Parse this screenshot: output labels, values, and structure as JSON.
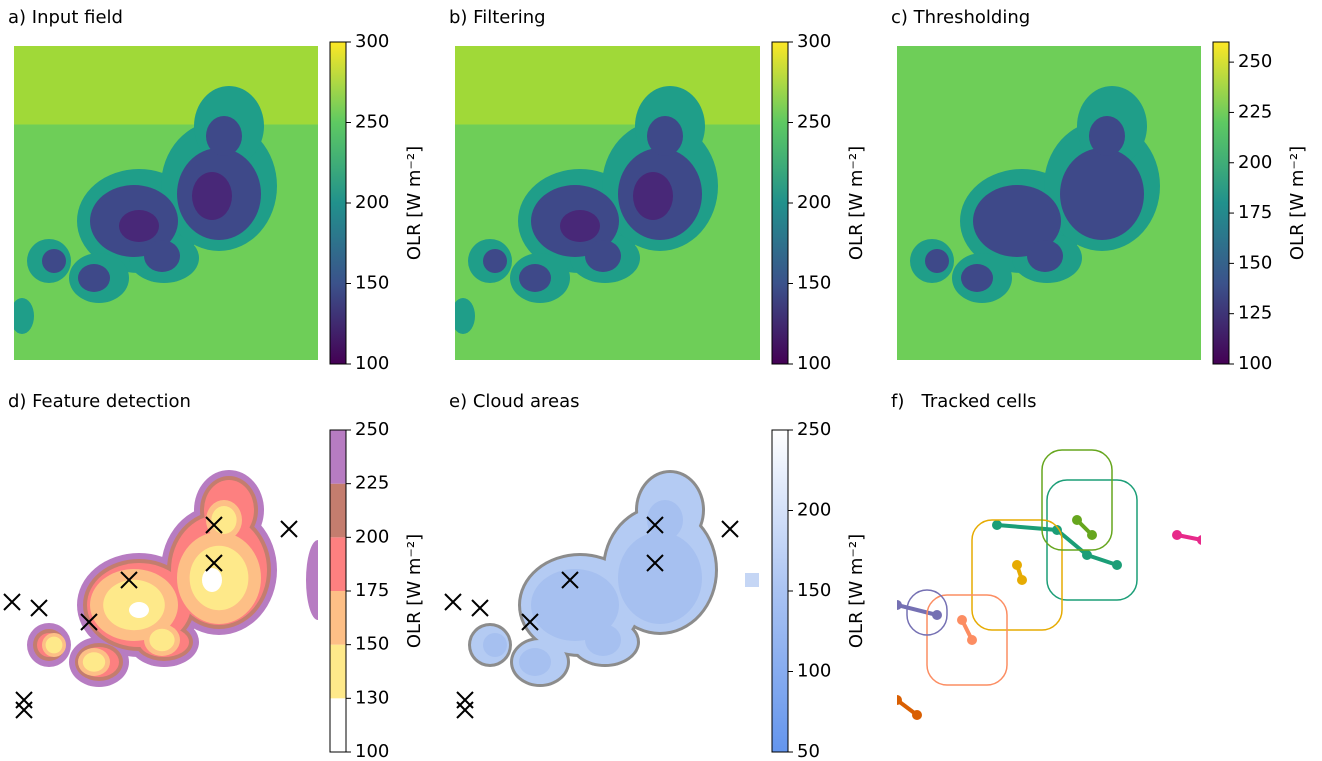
{
  "chart_data": [
    {
      "type": "heatmap",
      "title": "a) Input field",
      "colormap": "viridis",
      "colorbar_label": "OLR [W m⁻²]",
      "clim": [
        100,
        300
      ],
      "cticks": [
        100,
        150,
        200,
        250,
        300
      ]
    },
    {
      "type": "heatmap",
      "title": "b) Filtering",
      "colormap": "viridis",
      "colorbar_label": "OLR [W m⁻²]",
      "clim": [
        100,
        300
      ],
      "cticks": [
        100,
        150,
        200,
        250,
        300
      ]
    },
    {
      "type": "heatmap",
      "title": "c) Thresholding",
      "colormap": "viridis",
      "colorbar_label": "OLR [W m⁻²]",
      "clim": [
        100,
        260
      ],
      "cticks": [
        100,
        125,
        150,
        175,
        200,
        225,
        250
      ]
    },
    {
      "type": "contour",
      "title": "d) Feature detection",
      "colormap": "levels",
      "colorbar_label": "OLR [W m⁻²]",
      "clim": [
        100,
        250
      ],
      "cticks": [
        100,
        130,
        150,
        175,
        200,
        225,
        250
      ],
      "level_colors": [
        "#ffffff",
        "#fee98a",
        "#fdbf86",
        "#fd8080",
        "#c47d6e",
        "#b77cc2"
      ]
    },
    {
      "type": "segmentation",
      "title": "e) Cloud areas",
      "colormap": "blues",
      "colorbar_label": "OLR [W m⁻²]",
      "clim": [
        50,
        250
      ],
      "cticks": [
        50,
        100,
        150,
        200,
        250
      ]
    },
    {
      "type": "tracks",
      "title": "f)   Tracked cells"
    }
  ]
}
